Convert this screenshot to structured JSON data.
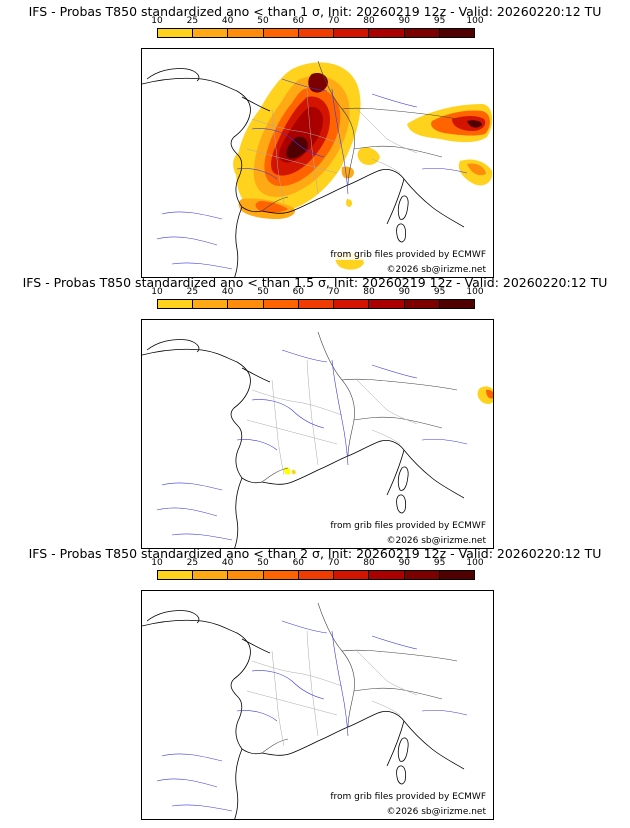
{
  "colorbar": {
    "ticks": [
      "10",
      "25",
      "40",
      "50",
      "60",
      "70",
      "80",
      "90",
      "95",
      "100"
    ],
    "colors": [
      "#ffff00",
      "#ffd21e",
      "#ffaa14",
      "#ff8c0a",
      "#ff6400",
      "#f03c00",
      "#d21400",
      "#aa0000",
      "#7d0000",
      "#500000"
    ]
  },
  "credits": {
    "source": "from grib files provided by ECMWF",
    "copyright": "©2026 sb@irizme.net"
  },
  "panels": [
    {
      "title": "IFS - Probas T850  standardized ano < than 1 σ, Init: 20260219 12z - Valid: 20260220:12 TU",
      "anomaly_threshold": "1 σ"
    },
    {
      "title": "IFS - Probas T850  standardized ano < than 1.5 σ, Init: 20260219 12z - Valid: 20260220:12 TU",
      "anomaly_threshold": "1.5 σ"
    },
    {
      "title": "IFS - Probas T850  standardized ano < than 2 σ, Init: 20260219 12z - Valid: 20260220:12 TU",
      "anomaly_threshold": "2 σ"
    }
  ]
}
